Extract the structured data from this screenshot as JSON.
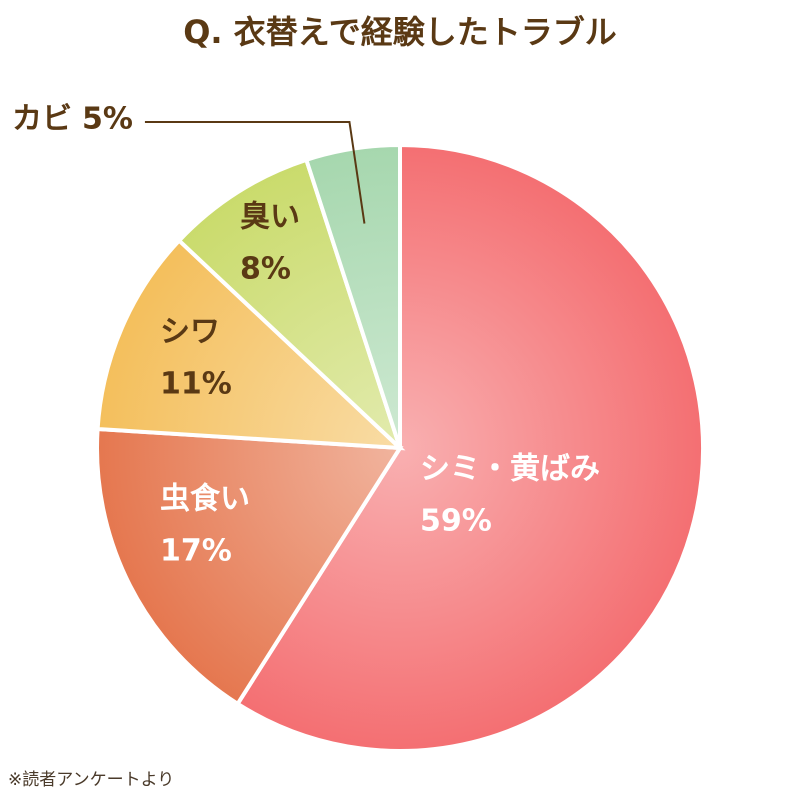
{
  "chart_data": {
    "type": "pie",
    "title": "Q. 衣替えで経験したトラブル",
    "categories": [
      "シミ・黄ばみ",
      "虫食い",
      "シワ",
      "臭い",
      "カビ"
    ],
    "values": [
      59,
      17,
      11,
      8,
      5
    ],
    "value_labels": [
      "59%",
      "17%",
      "11%",
      "8%",
      "5%"
    ],
    "colors": [
      "#f46f72",
      "#e5774f",
      "#f4bf5c",
      "#cadb6c",
      "#a6d7ae"
    ],
    "label_colors": [
      "#ffffff",
      "#ffffff",
      "#5a3914",
      "#5a3914",
      "#5a3914"
    ],
    "note": "※読者アンケートより"
  }
}
